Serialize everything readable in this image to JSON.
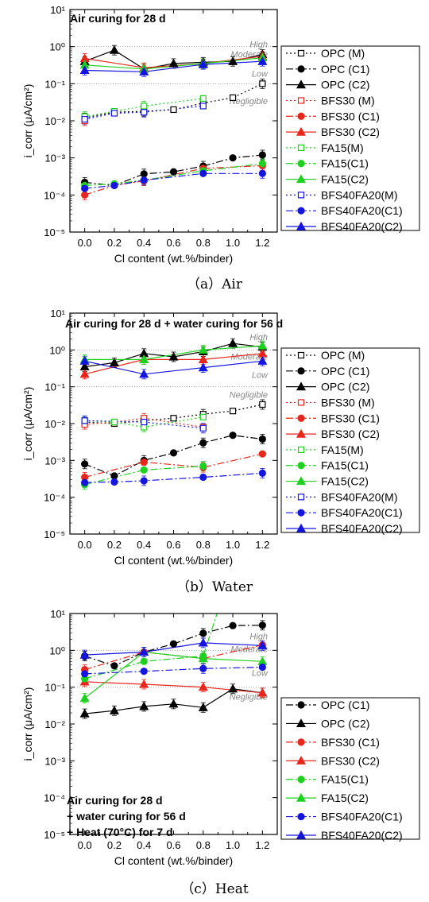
{
  "colors": {
    "OPC": "#000000",
    "BFS30": "#e8271c",
    "FA15": "#1fd11f",
    "BFS40FA20": "#1515e0",
    "guide": "#b0b0b0",
    "zoneText": "#888888"
  },
  "chart_data": [
    {
      "type": "scatter",
      "caption": "（a）Air",
      "title": [
        "Air curing for 28 d"
      ],
      "xlabel": "Cl content (wt.%/binder)",
      "ylabel": "i_corr (μA/cm²)",
      "xlim": [
        -0.1,
        1.3
      ],
      "ylim_log10": [
        -5,
        1
      ],
      "yscale": "log",
      "xticks": [
        "0.0",
        "0.2",
        "0.4",
        "0.6",
        "0.8",
        "1.0",
        "1.2"
      ],
      "yticks": [
        "10⁻⁵",
        "10⁻⁴",
        "10⁻³",
        "10⁻²",
        "10⁻¹",
        "10⁰",
        "10¹"
      ],
      "legend_position": "right",
      "zones": [
        {
          "label": "High",
          "y": 0.95
        },
        {
          "label": "Moderate",
          "y": 0.52
        },
        {
          "label": "Low",
          "y": 0.155
        },
        {
          "label": "Negligible",
          "y": 0.028
        }
      ],
      "series": [
        {
          "name": "OPC (M)",
          "group": "OPC",
          "marker": "square",
          "filled": false,
          "line": "dot",
          "x": [
            0.0,
            0.2,
            0.4,
            0.6,
            0.8,
            1.0,
            1.2
          ],
          "y": [
            0.012,
            0.017,
            0.018,
            0.02,
            0.03,
            0.042,
            0.1
          ]
        },
        {
          "name": "OPC (C1)",
          "group": "OPC",
          "marker": "circle",
          "filled": true,
          "line": "dashdot",
          "x": [
            0.0,
            0.2,
            0.4,
            0.6,
            0.8,
            1.0,
            1.2
          ],
          "y": [
            0.00022,
            0.00018,
            0.00037,
            0.00042,
            0.0006,
            0.001,
            0.0012
          ]
        },
        {
          "name": "OPC (C2)",
          "group": "OPC",
          "marker": "triangle",
          "filled": true,
          "line": "solid",
          "x": [
            0.0,
            0.2,
            0.4,
            0.6,
            0.8,
            1.0,
            1.2
          ],
          "y": [
            0.4,
            0.8,
            0.25,
            0.35,
            0.38,
            0.4,
            0.62
          ]
        },
        {
          "name": "BFS30 (M)",
          "group": "BFS30",
          "marker": "square",
          "filled": false,
          "line": "dot",
          "x": [
            0.0
          ],
          "y": [
            0.01
          ]
        },
        {
          "name": "BFS30 (C1)",
          "group": "BFS30",
          "marker": "circle",
          "filled": true,
          "line": "dashdot",
          "x": [
            0.0,
            0.2,
            0.4,
            0.8,
            1.2
          ],
          "y": [
            0.0001,
            0.00018,
            0.00024,
            0.00052,
            0.00062
          ]
        },
        {
          "name": "BFS30 (C2)",
          "group": "BFS30",
          "marker": "triangle",
          "filled": true,
          "line": "solid",
          "x": [
            0.0,
            0.4,
            0.8,
            1.2
          ],
          "y": [
            0.48,
            0.27,
            0.35,
            0.55
          ]
        },
        {
          "name": "FA15(M)",
          "group": "FA15",
          "marker": "square",
          "filled": false,
          "line": "dot",
          "x": [
            0.0,
            0.2,
            0.4,
            0.8
          ],
          "y": [
            0.013,
            0.018,
            0.025,
            0.04
          ]
        },
        {
          "name": "FA15(C1)",
          "group": "FA15",
          "marker": "circle",
          "filled": true,
          "line": "dashdot",
          "x": [
            0.0,
            0.2,
            0.4,
            0.8,
            1.2
          ],
          "y": [
            0.00018,
            0.0002,
            0.00025,
            0.00045,
            0.0007
          ]
        },
        {
          "name": "FA15(C2)",
          "group": "FA15",
          "marker": "triangle",
          "filled": true,
          "line": "solid",
          "x": [
            0.0,
            0.4,
            0.8,
            1.2
          ],
          "y": [
            0.32,
            0.25,
            0.35,
            0.5
          ]
        },
        {
          "name": "BFS40FA20(M)",
          "group": "BFS40FA20",
          "marker": "square",
          "filled": false,
          "line": "dot",
          "x": [
            0.0,
            0.2,
            0.4,
            0.8
          ],
          "y": [
            0.011,
            0.016,
            0.017,
            0.025
          ]
        },
        {
          "name": "BFS40FA20(C1)",
          "group": "BFS40FA20",
          "marker": "circle",
          "filled": true,
          "line": "dashdot",
          "x": [
            0.0,
            0.2,
            0.4,
            0.8,
            1.2
          ],
          "y": [
            0.00015,
            0.00018,
            0.00025,
            0.00038,
            0.00038
          ]
        },
        {
          "name": "BFS40FA20(C2)",
          "group": "BFS40FA20",
          "marker": "triangle",
          "filled": true,
          "line": "solid",
          "x": [
            0.0,
            0.4,
            0.8,
            1.2
          ],
          "y": [
            0.23,
            0.21,
            0.33,
            0.4
          ]
        }
      ]
    },
    {
      "type": "scatter",
      "caption": "（b）Water",
      "title": [
        "Air curing for 28 d + water curing for 56 d"
      ],
      "xlabel": "Cl content (wt.%/binder)",
      "ylabel": "i_corr (μA/cm²)",
      "xlim": [
        -0.1,
        1.3
      ],
      "ylim_log10": [
        -5,
        1
      ],
      "yscale": "log",
      "xticks": [
        "0.0",
        "0.2",
        "0.4",
        "0.6",
        "0.8",
        "1.0",
        "1.2"
      ],
      "yticks": [
        "10⁻⁵",
        "10⁻⁴",
        "10⁻³",
        "10⁻²",
        "10⁻¹",
        "10⁰",
        "10¹"
      ],
      "legend_position": "right",
      "zones": [
        {
          "label": "High",
          "y": 1.85
        },
        {
          "label": "Moderate",
          "y": 0.55
        },
        {
          "label": "Low",
          "y": 0.175
        },
        {
          "label": "Negligible",
          "y": 0.05
        }
      ],
      "series": [
        {
          "name": "OPC (M)",
          "group": "OPC",
          "marker": "square",
          "filled": false,
          "line": "dot",
          "x": [
            0.0,
            0.2,
            0.4,
            0.6,
            0.8,
            1.0,
            1.2
          ],
          "y": [
            0.011,
            0.01,
            0.012,
            0.014,
            0.018,
            0.022,
            0.033
          ]
        },
        {
          "name": "OPC (C1)",
          "group": "OPC",
          "marker": "circle",
          "filled": true,
          "line": "dashdot",
          "x": [
            0.0,
            0.2,
            0.4,
            0.6,
            0.8,
            1.0,
            1.2
          ],
          "y": [
            0.0008,
            0.00038,
            0.001,
            0.0016,
            0.003,
            0.0048,
            0.0038
          ]
        },
        {
          "name": "OPC (C2)",
          "group": "OPC",
          "marker": "triangle",
          "filled": true,
          "line": "solid",
          "x": [
            0.0,
            0.2,
            0.4,
            0.6,
            0.8,
            1.0,
            1.2
          ],
          "y": [
            0.35,
            0.45,
            0.8,
            0.65,
            0.9,
            1.5,
            1.2
          ]
        },
        {
          "name": "BFS30 (M)",
          "group": "BFS30",
          "marker": "square",
          "filled": false,
          "line": "dot",
          "x": [
            0.0,
            0.2,
            0.4,
            0.8
          ],
          "y": [
            0.0095,
            0.011,
            0.014,
            0.008
          ]
        },
        {
          "name": "BFS30 (C1)",
          "group": "BFS30",
          "marker": "circle",
          "filled": true,
          "line": "dashdot",
          "x": [
            0.0,
            0.4,
            0.8,
            1.2
          ],
          "y": [
            0.00035,
            0.0009,
            0.00065,
            0.0015
          ]
        },
        {
          "name": "BFS30 (C2)",
          "group": "BFS30",
          "marker": "triangle",
          "filled": true,
          "line": "solid",
          "x": [
            0.0,
            0.4,
            0.8,
            1.2
          ],
          "y": [
            0.22,
            0.55,
            0.55,
            0.8
          ]
        },
        {
          "name": "FA15(M)",
          "group": "FA15",
          "marker": "square",
          "filled": false,
          "line": "dot",
          "x": [
            0.0,
            0.2,
            0.4,
            0.8
          ],
          "y": [
            0.012,
            0.011,
            0.008,
            0.015
          ]
        },
        {
          "name": "FA15(C1)",
          "group": "FA15",
          "marker": "circle",
          "filled": true,
          "line": "dashdot",
          "x": [
            0.0,
            0.4,
            0.8
          ],
          "y": [
            0.00022,
            0.00055,
            0.0007
          ]
        },
        {
          "name": "FA15(C2)",
          "group": "FA15",
          "marker": "triangle",
          "filled": true,
          "line": "solid",
          "x": [
            0.0,
            0.4,
            0.8,
            1.2
          ],
          "y": [
            0.55,
            0.55,
            1.0,
            1.3
          ]
        },
        {
          "name": "BFS40FA20(M)",
          "group": "BFS40FA20",
          "marker": "square",
          "filled": false,
          "line": "dot",
          "x": [
            0.0,
            0.4,
            0.8
          ],
          "y": [
            0.012,
            0.011,
            0.0075
          ]
        },
        {
          "name": "BFS40FA20(C1)",
          "group": "BFS40FA20",
          "marker": "circle",
          "filled": true,
          "line": "dashdot",
          "x": [
            0.0,
            0.2,
            0.4,
            0.8,
            1.2
          ],
          "y": [
            0.00025,
            0.00026,
            0.00028,
            0.00035,
            0.00045
          ]
        },
        {
          "name": "BFS40FA20(C2)",
          "group": "BFS40FA20",
          "marker": "triangle",
          "filled": true,
          "line": "solid",
          "x": [
            0.0,
            0.4,
            0.8,
            1.2
          ],
          "y": [
            0.5,
            0.22,
            0.33,
            0.5
          ]
        }
      ]
    },
    {
      "type": "scatter",
      "caption": "（c）Heat",
      "title": [
        "Air curing for 28 d",
        "+ water curing for 56 d",
        "+ Heat (70°C) for 7 d"
      ],
      "xlabel": "Cl content (wt.%/binder)",
      "ylabel": "i_corr (μA/cm²)",
      "xlim": [
        -0.1,
        1.3
      ],
      "ylim_log10": [
        -5,
        1
      ],
      "yscale": "log",
      "xticks": [
        "0.0",
        "0.2",
        "0.4",
        "0.6",
        "0.8",
        "1.0",
        "1.2"
      ],
      "yticks": [
        "10⁻⁵",
        "10⁻⁴",
        "10⁻³",
        "10⁻²",
        "10⁻¹",
        "10⁰",
        "10¹"
      ],
      "legend_position": "right",
      "zones": [
        {
          "label": "High",
          "y": 2.0
        },
        {
          "label": "Moderate",
          "y": 0.9
        },
        {
          "label": "Low",
          "y": 0.2
        },
        {
          "label": "Negligible",
          "y": 0.045
        }
      ],
      "series": [
        {
          "name": "OPC (C1)",
          "group": "OPC",
          "marker": "circle",
          "filled": true,
          "line": "dashdot",
          "x": [
            0.0,
            0.2,
            0.4,
            0.6,
            0.8,
            1.0,
            1.2
          ],
          "y": [
            0.7,
            0.38,
            0.9,
            1.5,
            2.9,
            4.7,
            4.8
          ]
        },
        {
          "name": "OPC (C2)",
          "group": "OPC",
          "marker": "triangle",
          "filled": true,
          "line": "solid",
          "x": [
            0.0,
            0.2,
            0.4,
            0.6,
            0.8,
            1.0,
            1.2
          ],
          "y": [
            0.019,
            0.023,
            0.03,
            0.035,
            0.028,
            0.09,
            0.07
          ]
        },
        {
          "name": "BFS30 (C1)",
          "group": "BFS30",
          "marker": "circle",
          "filled": true,
          "line": "dashdot",
          "x": [
            0.0,
            0.4,
            0.8,
            1.2
          ],
          "y": [
            0.3,
            0.9,
            0.6,
            1.4
          ]
        },
        {
          "name": "BFS30 (C2)",
          "group": "BFS30",
          "marker": "triangle",
          "filled": true,
          "line": "solid",
          "x": [
            0.0,
            0.4,
            0.8,
            1.2
          ],
          "y": [
            0.14,
            0.12,
            0.1,
            0.07
          ]
        },
        {
          "name": "FA15(C1)",
          "group": "FA15",
          "marker": "circle",
          "filled": true,
          "line": "dashdot",
          "x": [
            0.0,
            0.4,
            0.8,
            0.9
          ],
          "y": [
            0.17,
            0.5,
            0.7,
            12
          ]
        },
        {
          "name": "FA15(C2)",
          "group": "FA15",
          "marker": "triangle",
          "filled": true,
          "line": "solid",
          "x": [
            0.0,
            0.4,
            0.8,
            1.2
          ],
          "y": [
            0.05,
            0.9,
            0.6,
            0.5
          ]
        },
        {
          "name": "BFS40FA20(C1)",
          "group": "BFS40FA20",
          "marker": "circle",
          "filled": true,
          "line": "dashdot",
          "x": [
            0.0,
            0.4,
            0.8,
            1.2
          ],
          "y": [
            0.23,
            0.27,
            0.32,
            0.35
          ]
        },
        {
          "name": "BFS40FA20(C2)",
          "group": "BFS40FA20",
          "marker": "triangle",
          "filled": true,
          "line": "solid",
          "x": [
            0.0,
            0.4,
            0.8,
            1.2
          ],
          "y": [
            0.75,
            0.9,
            1.6,
            1.35
          ]
        }
      ]
    }
  ]
}
